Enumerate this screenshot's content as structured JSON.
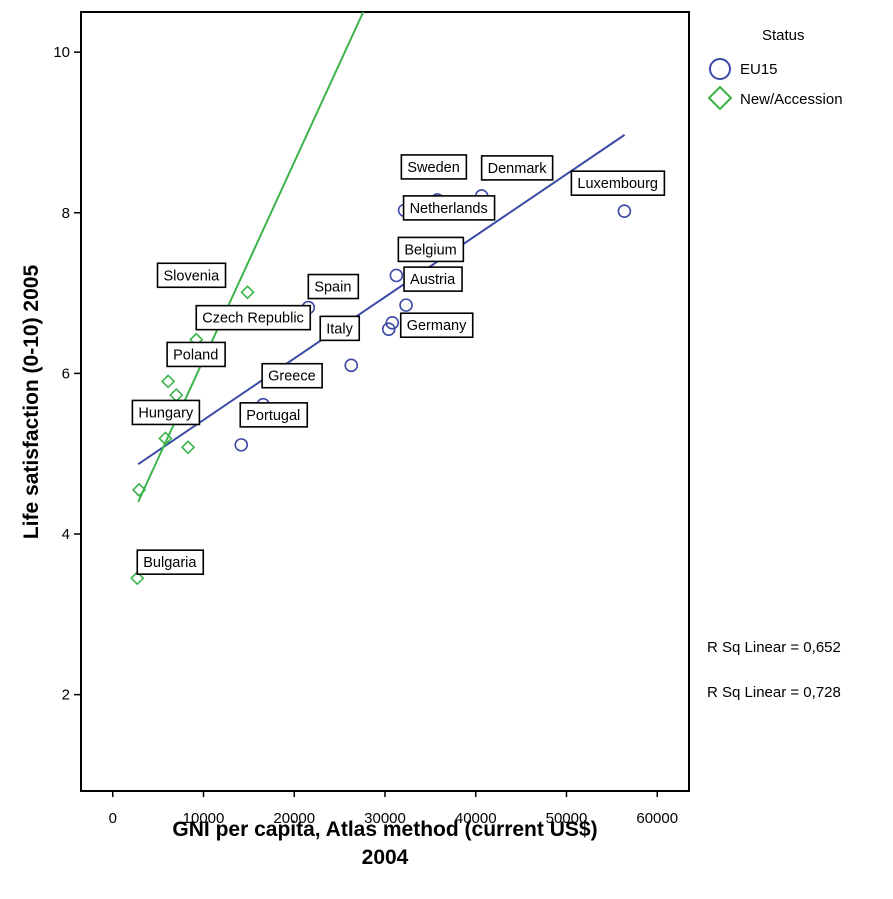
{
  "chart_data": {
    "type": "scatter",
    "xlabel": [
      "GNI per capita, Atlas method (current US$)",
      "2004"
    ],
    "ylabel": "Life satisfaction (0-10) 2005",
    "xlim": [
      -3500,
      63500
    ],
    "ylim": [
      0.8,
      10.5
    ],
    "xticks": [
      0,
      10000,
      20000,
      30000,
      40000,
      50000,
      60000
    ],
    "yticks": [
      2,
      4,
      6,
      8,
      10
    ],
    "grid": false,
    "legend": {
      "title": "Status",
      "placement": "right",
      "entries": [
        {
          "name": "EU15",
          "marker": "circle",
          "color": "#3d4aa5"
        },
        {
          "name": "New/Accession",
          "marker": "diamond",
          "color": "#3bb54a"
        }
      ]
    },
    "series": [
      {
        "name": "EU15",
        "marker": "circle",
        "color": "#3d4aa5",
        "points": [
          {
            "x": 56380,
            "y": 8.02,
            "label": "Luxembourg"
          },
          {
            "x": 40650,
            "y": 8.21,
            "label": "Denmark"
          },
          {
            "x": 35770,
            "y": 8.16,
            "label": "Sweden"
          },
          {
            "x": 32160,
            "y": 8.03,
            "label": ""
          },
          {
            "x": 34360,
            "y": 7.6,
            "label": "Netherlands"
          },
          {
            "x": 32800,
            "y": 7.58,
            "label": ""
          },
          {
            "x": 31250,
            "y": 7.22,
            "label": "Belgium"
          },
          {
            "x": 32320,
            "y": 6.85,
            "label": "Austria"
          },
          {
            "x": 30800,
            "y": 6.63,
            "label": ""
          },
          {
            "x": 30410,
            "y": 6.55,
            "label": "Germany"
          },
          {
            "x": 21550,
            "y": 6.82,
            "label": "Spain"
          },
          {
            "x": 26280,
            "y": 6.1,
            "label": "Italy"
          },
          {
            "x": 16570,
            "y": 5.61,
            "label": "Greece"
          },
          {
            "x": 14160,
            "y": 5.11,
            "label": "Portugal"
          }
        ]
      },
      {
        "name": "New/Accession",
        "marker": "diamond",
        "color": "#3bb54a",
        "points": [
          {
            "x": 14850,
            "y": 7.01,
            "label": "Slovenia"
          },
          {
            "x": 9200,
            "y": 6.42,
            "label": "Czech Republic"
          },
          {
            "x": 6100,
            "y": 5.9,
            "label": "Poland"
          },
          {
            "x": 7000,
            "y": 5.73,
            "label": ""
          },
          {
            "x": 5800,
            "y": 5.19,
            "label": "Hungary"
          },
          {
            "x": 8300,
            "y": 5.08,
            "label": ""
          },
          {
            "x": 2900,
            "y": 4.55,
            "label": ""
          },
          {
            "x": 2700,
            "y": 3.45,
            "label": "Bulgaria"
          }
        ]
      }
    ],
    "fit_lines": [
      {
        "series": "EU15",
        "color": "#3d4aa5",
        "x": [
          2800,
          56400
        ],
        "y": [
          4.87,
          8.97
        ]
      },
      {
        "series": "New/Accession",
        "color": "#3bb54a",
        "x": [
          2800,
          27600
        ],
        "y": [
          4.4,
          10.5
        ]
      }
    ],
    "annotations": [
      "R Sq Linear = 0,652",
      "R Sq Linear = 0,728"
    ]
  }
}
